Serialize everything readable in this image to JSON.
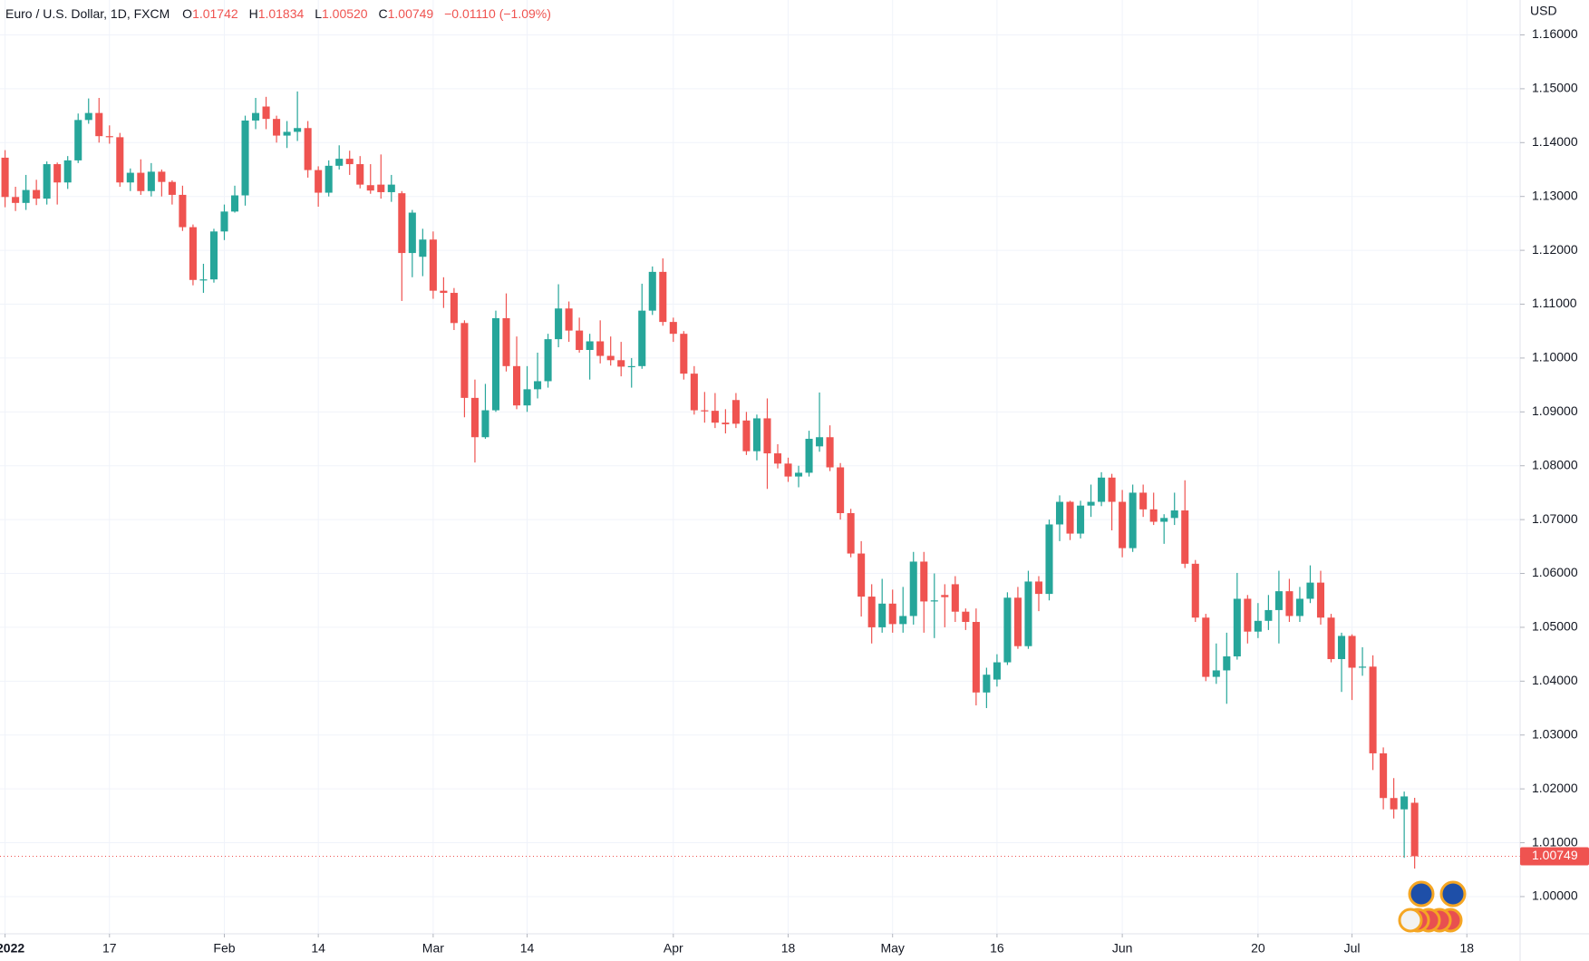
{
  "chart_data": {
    "type": "candlestick",
    "title": "Euro / U.S. Dollar, 1D, FXCM",
    "ohlc_header": [
      {
        "letter": "O",
        "value": "1.01742"
      },
      {
        "letter": "H",
        "value": "1.01834"
      },
      {
        "letter": "L",
        "value": "1.00520"
      },
      {
        "letter": "C",
        "value": "1.00749"
      }
    ],
    "change": "−0.01110 (−1.09%)",
    "currency": "USD",
    "up_color": "#26a69a",
    "down_color": "#ef5350",
    "grid": true,
    "open": [
      1.1372,
      1.1299,
      1.1288,
      1.1312,
      1.1296,
      1.136,
      1.1326,
      1.1367,
      1.1442,
      1.1455,
      1.1412,
      1.141,
      1.1326,
      1.1344,
      1.131,
      1.1346,
      1.1327,
      1.1303,
      1.1243,
      1.1145,
      1.1146,
      1.1235,
      1.1272,
      1.1302,
      1.1441,
      1.1467,
      1.1444,
      1.1413,
      1.142,
      1.1427,
      1.1349,
      1.1307,
      1.1357,
      1.137,
      1.136,
      1.1321,
      1.1322,
      1.1308,
      1.1306,
      1.1195,
      1.1188,
      1.122,
      1.1125,
      1.1121,
      1.1065,
      1.0926,
      1.0853,
      1.0903,
      1.1074,
      1.0985,
      1.0912,
      1.0942,
      1.0957,
      1.1035,
      1.1092,
      1.1051,
      1.1015,
      1.1031,
      1.1004,
      1.0996,
      1.0984,
      1.0985,
      1.1088,
      1.116,
      1.1067,
      1.1045,
      1.0971,
      1.0903,
      1.0902,
      1.088,
      1.0922,
      1.0884,
      1.0827,
      1.0888,
      1.0823,
      1.0804,
      1.078,
      1.0787,
      1.0836,
      1.0853,
      1.0797,
      1.0712,
      1.0637,
      1.0557,
      1.05,
      1.0544,
      1.0506,
      1.0521,
      1.0622,
      1.0548,
      1.056,
      1.058,
      1.0529,
      1.051,
      1.0379,
      1.0403,
      1.0435,
      1.0555,
      1.0465,
      1.0585,
      1.0562,
      1.0691,
      1.0733,
      1.0674,
      1.0726,
      1.0733,
      1.0778,
      1.0733,
      1.0647,
      1.075,
      1.0719,
      1.0696,
      1.0703,
      1.0717,
      1.0618,
      1.0518,
      1.0408,
      1.042,
      1.0446,
      1.0553,
      1.0492,
      1.0512,
      1.0532,
      1.0567,
      1.0521,
      1.0553,
      1.0583,
      1.0518,
      1.0441,
      1.0484,
      1.0425,
      1.0427,
      1.0266,
      1.0183,
      1.0162,
      1.01742
    ],
    "high": [
      1.1386,
      1.1318,
      1.134,
      1.1331,
      1.1365,
      1.1363,
      1.1375,
      1.1454,
      1.1482,
      1.1483,
      1.1432,
      1.1418,
      1.1352,
      1.1369,
      1.1362,
      1.135,
      1.133,
      1.132,
      1.1248,
      1.1175,
      1.124,
      1.1285,
      1.132,
      1.145,
      1.1483,
      1.1485,
      1.145,
      1.144,
      1.1495,
      1.144,
      1.1356,
      1.1367,
      1.1395,
      1.1385,
      1.1375,
      1.136,
      1.1378,
      1.134,
      1.131,
      1.1275,
      1.124,
      1.1235,
      1.115,
      1.113,
      1.107,
      1.096,
      1.0952,
      1.1088,
      1.112,
      1.104,
      1.0985,
      1.101,
      1.1045,
      1.1137,
      1.1105,
      1.1075,
      1.1045,
      1.107,
      1.104,
      1.103,
      1.1,
      1.1138,
      1.117,
      1.1185,
      1.1075,
      1.105,
      1.0985,
      1.0937,
      1.0935,
      1.0905,
      1.0935,
      1.09,
      1.0895,
      1.0925,
      1.084,
      1.0815,
      1.08,
      1.0865,
      1.0936,
      1.0875,
      1.0805,
      1.072,
      1.066,
      1.058,
      1.059,
      1.057,
      1.0575,
      1.064,
      1.064,
      1.06,
      1.058,
      1.0595,
      1.0535,
      1.0535,
      1.0425,
      1.045,
      1.0565,
      1.0575,
      1.0605,
      1.0595,
      1.07,
      1.0745,
      1.0735,
      1.0735,
      1.0765,
      1.0788,
      1.0785,
      1.0755,
      1.0765,
      1.0765,
      1.075,
      1.071,
      1.075,
      1.0773,
      1.0625,
      1.0525,
      1.047,
      1.049,
      1.0601,
      1.056,
      1.0545,
      1.056,
      1.0605,
      1.059,
      1.0575,
      1.0615,
      1.0605,
      1.0525,
      1.049,
      1.0487,
      1.0463,
      1.0448,
      1.0277,
      1.022,
      1.0195,
      1.01834
    ],
    "low": [
      1.128,
      1.1273,
      1.1275,
      1.1284,
      1.1285,
      1.1285,
      1.1314,
      1.1362,
      1.1435,
      1.14,
      1.1398,
      1.1318,
      1.131,
      1.1303,
      1.13,
      1.13,
      1.1285,
      1.1236,
      1.1135,
      1.1121,
      1.114,
      1.1219,
      1.127,
      1.1283,
      1.1425,
      1.1425,
      1.14,
      1.139,
      1.1403,
      1.1335,
      1.1281,
      1.13,
      1.135,
      1.134,
      1.1315,
      1.1305,
      1.1296,
      1.129,
      1.1106,
      1.115,
      1.1152,
      1.111,
      1.1093,
      1.1052,
      1.089,
      1.0806,
      1.085,
      1.09,
      1.0975,
      1.0905,
      1.09,
      1.0925,
      1.0945,
      1.102,
      1.103,
      1.101,
      1.096,
      1.099,
      1.0986,
      1.0966,
      1.0945,
      1.098,
      1.108,
      1.106,
      1.103,
      1.096,
      1.0895,
      1.088,
      1.087,
      1.086,
      1.087,
      1.082,
      1.081,
      1.0757,
      1.0795,
      1.077,
      1.076,
      1.078,
      1.0826,
      1.079,
      1.07,
      1.063,
      1.052,
      1.047,
      1.049,
      1.049,
      1.049,
      1.0505,
      1.049,
      1.048,
      1.05,
      1.051,
      1.0495,
      1.0355,
      1.035,
      1.039,
      1.043,
      1.046,
      1.046,
      1.053,
      1.055,
      1.066,
      1.0662,
      1.0665,
      1.0705,
      1.0725,
      1.068,
      1.063,
      1.064,
      1.0705,
      1.069,
      1.0655,
      1.069,
      1.061,
      1.051,
      1.04,
      1.0395,
      1.0358,
      1.044,
      1.047,
      1.048,
      1.0495,
      1.047,
      1.051,
      1.051,
      1.0545,
      1.0505,
      1.0435,
      1.038,
      1.0365,
      1.041,
      1.0235,
      1.0162,
      1.0145,
      1.0072,
      1.0052
    ],
    "close": [
      1.1299,
      1.1288,
      1.1312,
      1.1296,
      1.136,
      1.1326,
      1.1367,
      1.1442,
      1.1455,
      1.1412,
      1.141,
      1.1326,
      1.1344,
      1.131,
      1.1346,
      1.1327,
      1.1303,
      1.1243,
      1.1145,
      1.1146,
      1.1235,
      1.1272,
      1.1302,
      1.1441,
      1.1455,
      1.1444,
      1.1413,
      1.142,
      1.1427,
      1.1349,
      1.1307,
      1.1357,
      1.137,
      1.136,
      1.1322,
      1.1311,
      1.1308,
      1.1322,
      1.1195,
      1.127,
      1.122,
      1.1125,
      1.1121,
      1.1065,
      1.0926,
      1.0853,
      1.0903,
      1.1074,
      1.0985,
      1.0912,
      1.0942,
      1.0957,
      1.1035,
      1.1092,
      1.1051,
      1.1015,
      1.1031,
      1.1004,
      1.0996,
      1.0984,
      1.0985,
      1.1088,
      1.116,
      1.1067,
      1.1045,
      1.0971,
      1.0903,
      1.0902,
      1.088,
      1.0877,
      1.0878,
      1.0827,
      1.0888,
      1.0823,
      1.0804,
      1.078,
      1.0787,
      1.085,
      1.0853,
      1.0797,
      1.0712,
      1.0637,
      1.0557,
      1.05,
      1.0544,
      1.0506,
      1.0521,
      1.0622,
      1.0548,
      1.055,
      1.0556,
      1.0529,
      1.051,
      1.0379,
      1.0412,
      1.0435,
      1.0555,
      1.0465,
      1.0585,
      1.0562,
      1.0691,
      1.0733,
      1.0674,
      1.0726,
      1.0733,
      1.0778,
      1.0733,
      1.0647,
      1.075,
      1.0719,
      1.0696,
      1.0703,
      1.0717,
      1.0618,
      1.0518,
      1.0408,
      1.042,
      1.0446,
      1.0553,
      1.0492,
      1.0512,
      1.0532,
      1.0567,
      1.0521,
      1.0553,
      1.0583,
      1.0518,
      1.0441,
      1.0484,
      1.0425,
      1.0427,
      1.0266,
      1.0183,
      1.0162,
      1.0186,
      1.00749
    ],
    "xlim": [
      -0.485,
      145.1
    ],
    "xticks": [
      {
        "value": 0,
        "label": "2022"
      },
      {
        "value": 10,
        "label": "17"
      },
      {
        "value": 21,
        "label": "Feb"
      },
      {
        "value": 30,
        "label": "14"
      },
      {
        "value": 41,
        "label": "Mar"
      },
      {
        "value": 50,
        "label": "14"
      },
      {
        "value": 64,
        "label": "Apr"
      },
      {
        "value": 75,
        "label": "18"
      },
      {
        "value": 85,
        "label": "May"
      },
      {
        "value": 95,
        "label": "16"
      },
      {
        "value": 107,
        "label": "Jun"
      },
      {
        "value": 120,
        "label": "20"
      },
      {
        "value": 129,
        "label": "Jul"
      },
      {
        "value": 140,
        "label": "18"
      }
    ],
    "ylim": [
      0.99309,
      1.16648
    ],
    "yticks": [
      {
        "value": 1.0,
        "label": "1.00000"
      },
      {
        "value": 1.01,
        "label": "1.01000"
      },
      {
        "value": 1.02,
        "label": "1.02000"
      },
      {
        "value": 1.03,
        "label": "1.03000"
      },
      {
        "value": 1.04,
        "label": "1.04000"
      },
      {
        "value": 1.05,
        "label": "1.05000"
      },
      {
        "value": 1.06,
        "label": "1.06000"
      },
      {
        "value": 1.07,
        "label": "1.07000"
      },
      {
        "value": 1.08,
        "label": "1.08000"
      },
      {
        "value": 1.09,
        "label": "1.09000"
      },
      {
        "value": 1.1,
        "label": "1.10000"
      },
      {
        "value": 1.11,
        "label": "1.11000"
      },
      {
        "value": 1.12,
        "label": "1.12000"
      },
      {
        "value": 1.13,
        "label": "1.13000"
      },
      {
        "value": 1.14,
        "label": "1.14000"
      },
      {
        "value": 1.15,
        "label": "1.15000"
      },
      {
        "value": 1.16,
        "label": "1.16000"
      }
    ]
  }
}
